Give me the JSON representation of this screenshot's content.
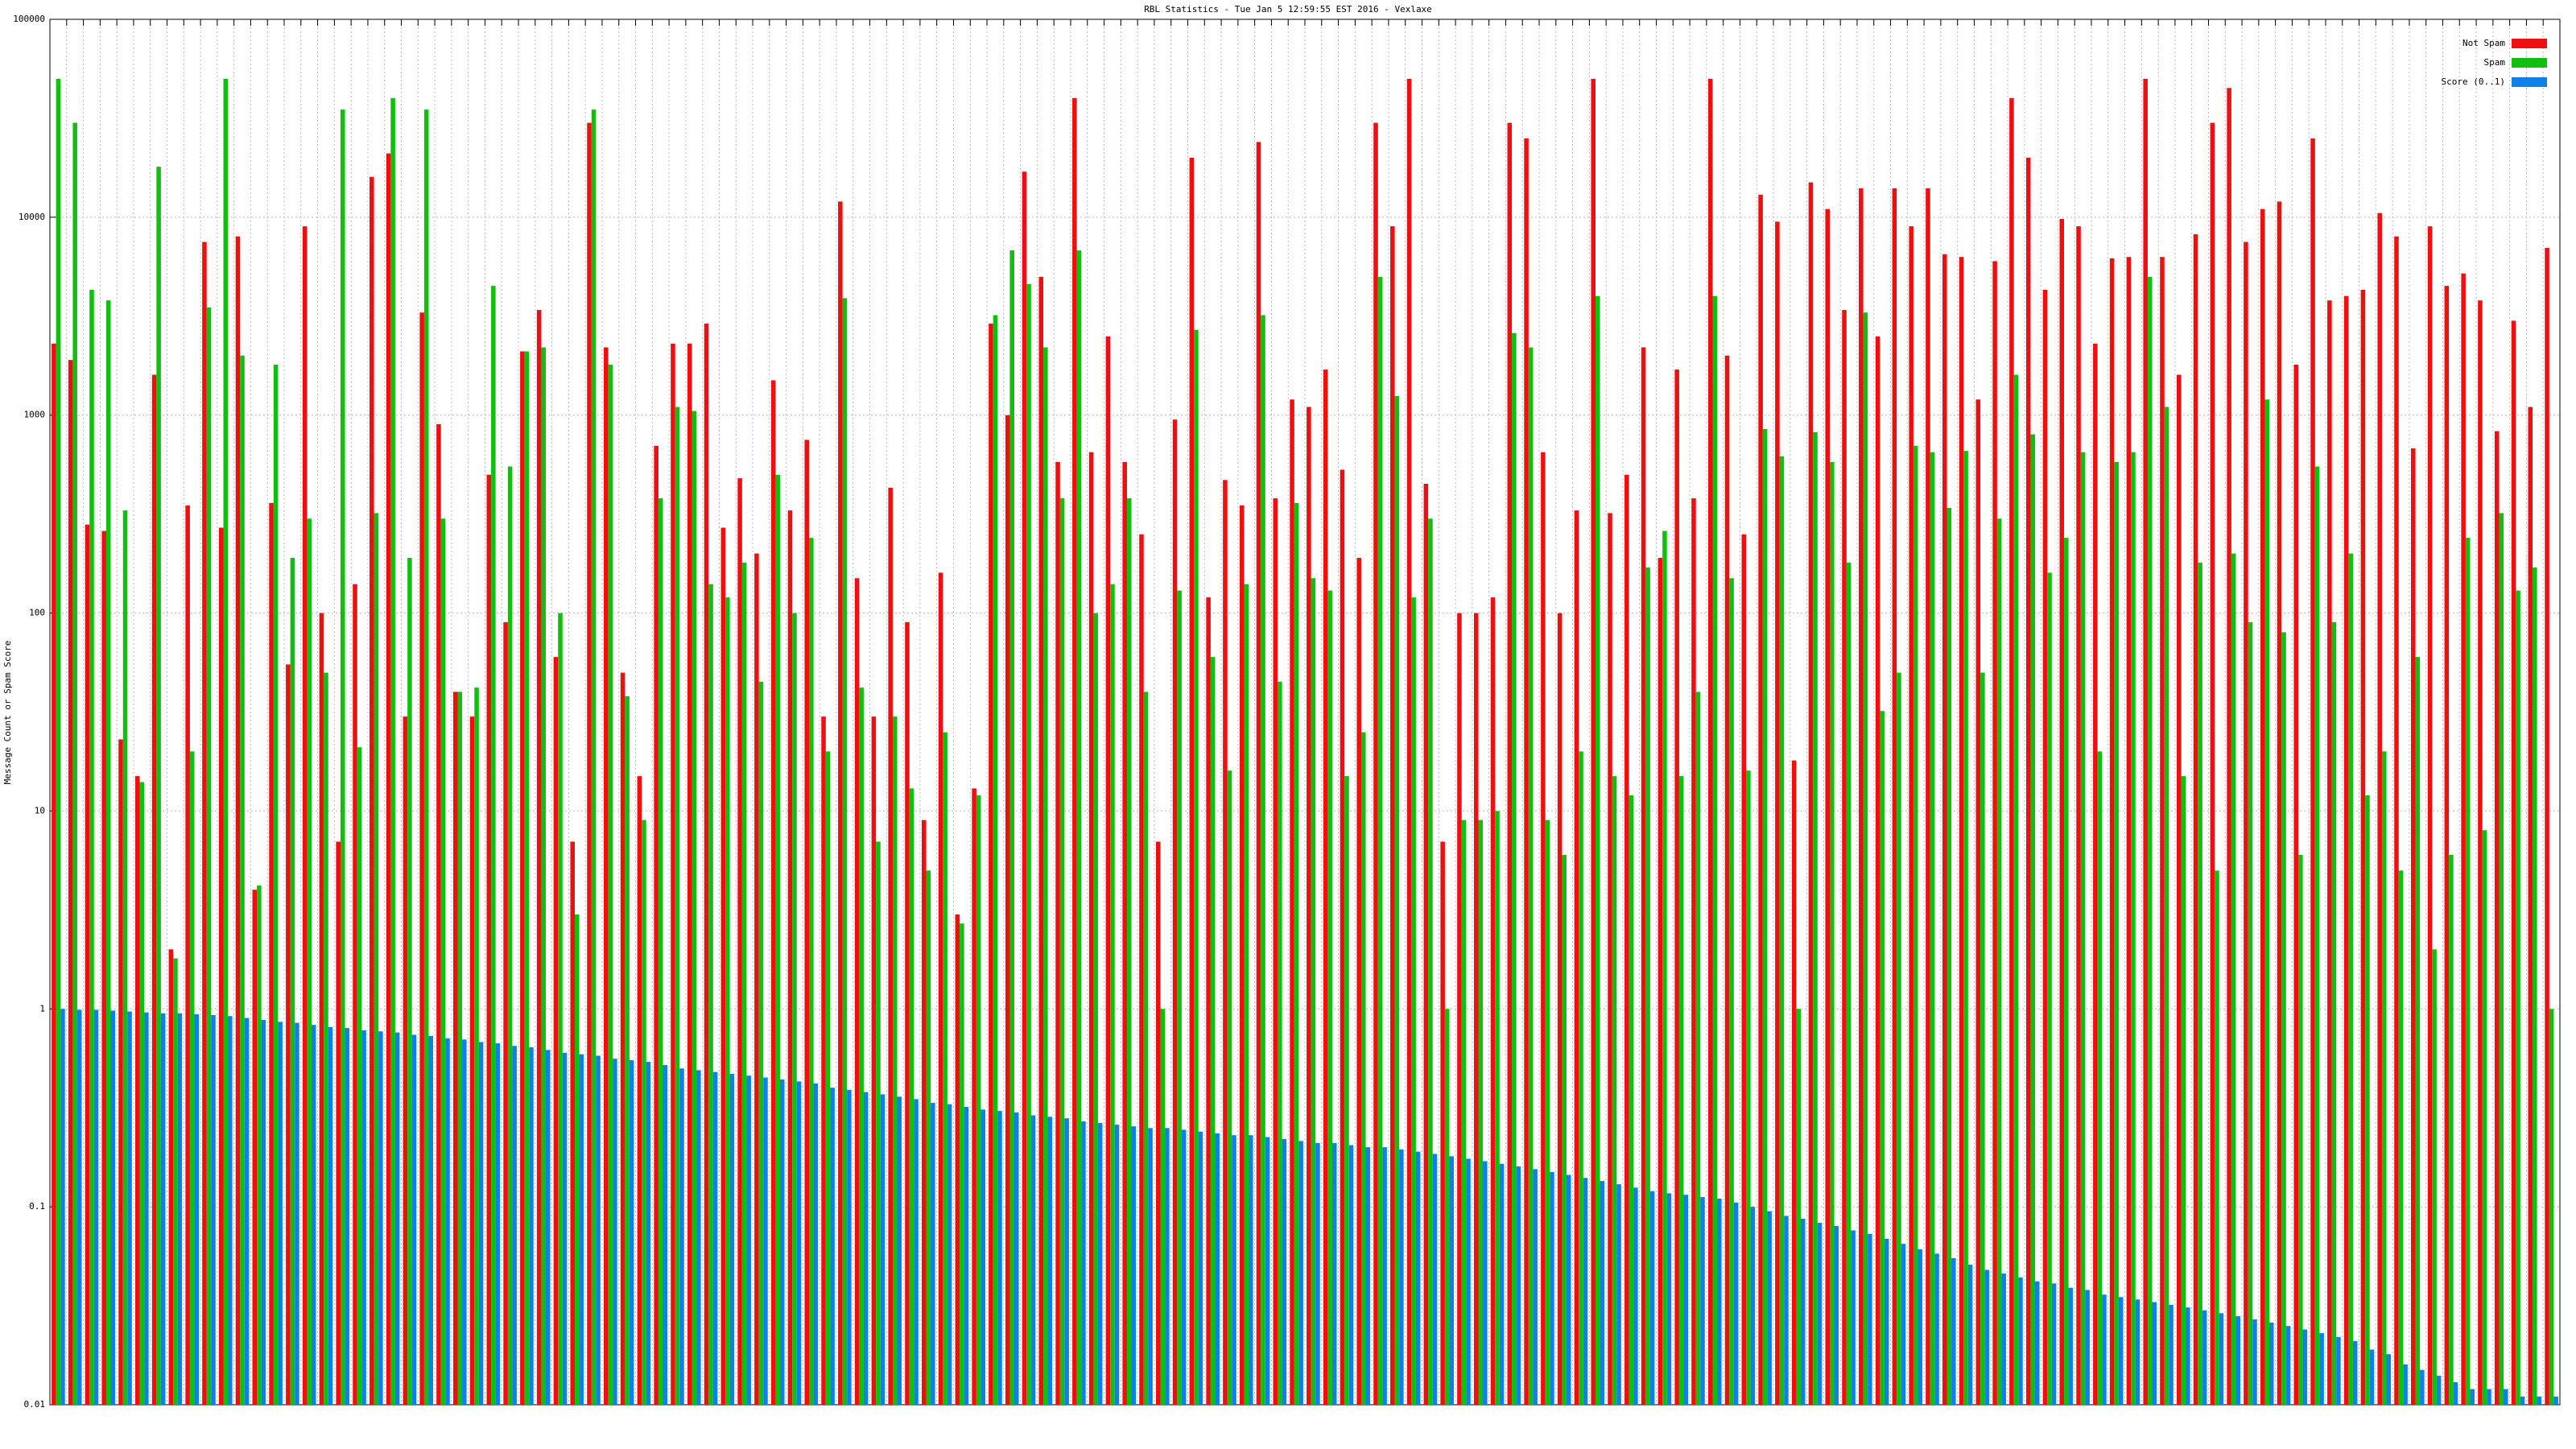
{
  "chart_data": {
    "type": "bar",
    "title": "RBL Statistics - Tue Jan  5 12:59:55 EST 2016 - Vexlaxe",
    "y_label": "Message Count or Spam Score",
    "log_scale": true,
    "grid": true,
    "legend": "top-right",
    "ylim": [
      0.01,
      100000
    ],
    "yticks": [
      0.01,
      0.1,
      1,
      10,
      100,
      1000,
      10000,
      100000
    ],
    "categories": [
      null,
      null,
      null,
      null,
      null,
      null,
      null,
      null,
      null,
      null,
      null,
      null,
      null,
      null,
      null,
      null,
      null,
      null,
      null,
      null,
      null,
      null,
      null,
      null,
      null,
      null,
      null,
      null,
      null,
      null,
      null,
      null,
      null,
      null,
      null,
      null,
      null,
      null,
      null,
      null,
      null,
      null,
      null,
      null,
      null,
      null,
      null,
      null,
      null,
      null,
      null,
      null,
      null,
      null,
      null,
      null,
      null,
      null,
      null,
      null,
      null,
      null,
      null,
      null,
      null,
      null,
      null,
      null,
      null,
      null,
      null,
      null,
      null,
      null,
      null,
      null,
      null,
      null,
      null,
      null,
      null,
      null,
      null,
      null,
      null,
      null,
      null,
      null,
      null,
      null,
      null,
      null,
      null,
      null,
      null,
      null,
      null,
      null,
      null,
      null,
      null,
      null,
      null,
      null,
      null,
      null,
      null,
      null,
      null,
      null,
      null,
      null,
      null,
      null,
      null,
      null,
      null,
      null,
      null,
      null,
      null,
      null,
      null,
      null,
      null,
      null,
      null,
      null,
      null,
      null,
      null,
      null,
      null,
      null,
      null,
      null,
      null,
      null,
      null,
      null,
      null,
      null,
      null,
      null,
      null,
      null,
      null,
      null,
      null,
      null
    ],
    "series": [
      {
        "name": "Not Spam",
        "color": "#ee1010",
        "values": [
          2300,
          1900,
          280,
          260,
          23,
          15,
          1600,
          2,
          350,
          7500,
          270,
          8000,
          4,
          360,
          55,
          9000,
          100,
          7,
          140,
          16000,
          21000,
          30,
          3300,
          900,
          40,
          30,
          500,
          90,
          2100,
          3400,
          60,
          7,
          30000,
          2200,
          50,
          15,
          700,
          2300,
          2300,
          2900,
          270,
          480,
          200,
          1500,
          330,
          750,
          30,
          12000,
          150,
          30,
          430,
          90,
          9,
          160,
          3,
          13,
          2900,
          1000,
          17000,
          5000,
          580,
          40000,
          650,
          2500,
          580,
          250,
          7,
          950,
          20000,
          120,
          470,
          350,
          24000,
          380,
          1200,
          1100,
          1700,
          530,
          190,
          30000,
          9000,
          50000,
          450,
          7,
          100,
          100,
          120,
          30000,
          25000,
          650,
          100,
          330,
          50000,
          320,
          500,
          2200,
          190,
          1700,
          380,
          50000,
          2000,
          250,
          13000,
          9500,
          18,
          15000,
          11000,
          3400,
          14000,
          2500,
          14000,
          9000,
          14000,
          6500,
          6300,
          1200,
          6000,
          40000,
          20000,
          4300,
          9800,
          9000,
          2300,
          6200,
          6300,
          50000,
          6300,
          1600,
          8200,
          30000,
          45000,
          7500,
          11000,
          12000,
          1800,
          25000,
          3800,
          4000,
          4300,
          10500,
          8000,
          680,
          9000,
          4500,
          5200,
          3800,
          830,
          3000,
          1100,
          7000
        ]
      },
      {
        "name": "Spam",
        "color": "#10c010",
        "values": [
          50000,
          30000,
          4300,
          3800,
          330,
          14,
          18000,
          1.8,
          20,
          3500,
          50000,
          2000,
          4.2,
          1800,
          190,
          300,
          50,
          35000,
          21,
          320,
          40000,
          190,
          35000,
          300,
          40,
          42,
          4500,
          550,
          2100,
          2200,
          100,
          3,
          35000,
          1800,
          38,
          9,
          380,
          1100,
          1050,
          140,
          120,
          180,
          45,
          500,
          100,
          240,
          20,
          3900,
          42,
          7,
          30,
          13,
          5,
          25,
          2.7,
          12,
          3200,
          6800,
          4600,
          2200,
          380,
          6800,
          100,
          140,
          380,
          40,
          1,
          130,
          2700,
          60,
          16,
          140,
          3200,
          45,
          360,
          150,
          130,
          15,
          25,
          5000,
          1250,
          120,
          300,
          1,
          9,
          9,
          10,
          2600,
          2200,
          9,
          6,
          20,
          4000,
          15,
          12,
          170,
          260,
          15,
          40,
          4000,
          150,
          16,
          850,
          620,
          1,
          820,
          580,
          180,
          3300,
          32,
          50,
          700,
          650,
          340,
          660,
          50,
          300,
          1600,
          800,
          160,
          240,
          650,
          20,
          580,
          650,
          5000,
          1100,
          15,
          180,
          5,
          200,
          90,
          1200,
          80,
          6,
          550,
          90,
          200,
          12,
          20,
          5,
          60,
          2,
          6,
          240,
          8,
          320,
          130,
          170,
          1
        ]
      },
      {
        "name": "Score (0..1)",
        "color": "#1080e8",
        "values": [
          1.0,
          0.99,
          0.99,
          0.98,
          0.97,
          0.96,
          0.95,
          0.95,
          0.94,
          0.93,
          0.92,
          0.9,
          0.88,
          0.86,
          0.85,
          0.83,
          0.81,
          0.8,
          0.78,
          0.77,
          0.76,
          0.74,
          0.73,
          0.71,
          0.7,
          0.68,
          0.67,
          0.65,
          0.64,
          0.62,
          0.6,
          0.59,
          0.58,
          0.56,
          0.55,
          0.54,
          0.52,
          0.5,
          0.49,
          0.48,
          0.47,
          0.46,
          0.45,
          0.44,
          0.43,
          0.42,
          0.4,
          0.39,
          0.38,
          0.37,
          0.36,
          0.35,
          0.335,
          0.33,
          0.32,
          0.31,
          0.305,
          0.3,
          0.29,
          0.285,
          0.28,
          0.27,
          0.265,
          0.26,
          0.255,
          0.25,
          0.25,
          0.245,
          0.24,
          0.235,
          0.23,
          0.23,
          0.225,
          0.22,
          0.215,
          0.21,
          0.21,
          0.205,
          0.2,
          0.2,
          0.195,
          0.19,
          0.185,
          0.18,
          0.175,
          0.17,
          0.165,
          0.16,
          0.155,
          0.15,
          0.145,
          0.14,
          0.135,
          0.13,
          0.125,
          0.12,
          0.117,
          0.115,
          0.112,
          0.11,
          0.105,
          0.1,
          0.095,
          0.09,
          0.087,
          0.083,
          0.08,
          0.076,
          0.073,
          0.069,
          0.065,
          0.061,
          0.058,
          0.055,
          0.051,
          0.048,
          0.046,
          0.044,
          0.042,
          0.041,
          0.039,
          0.038,
          0.036,
          0.035,
          0.034,
          0.033,
          0.032,
          0.031,
          0.03,
          0.029,
          0.028,
          0.027,
          0.026,
          0.025,
          0.024,
          0.023,
          0.022,
          0.021,
          0.019,
          0.018,
          0.016,
          0.015,
          0.014,
          0.013,
          0.012,
          0.012,
          0.012,
          0.011,
          0.011,
          0.011
        ]
      }
    ]
  }
}
